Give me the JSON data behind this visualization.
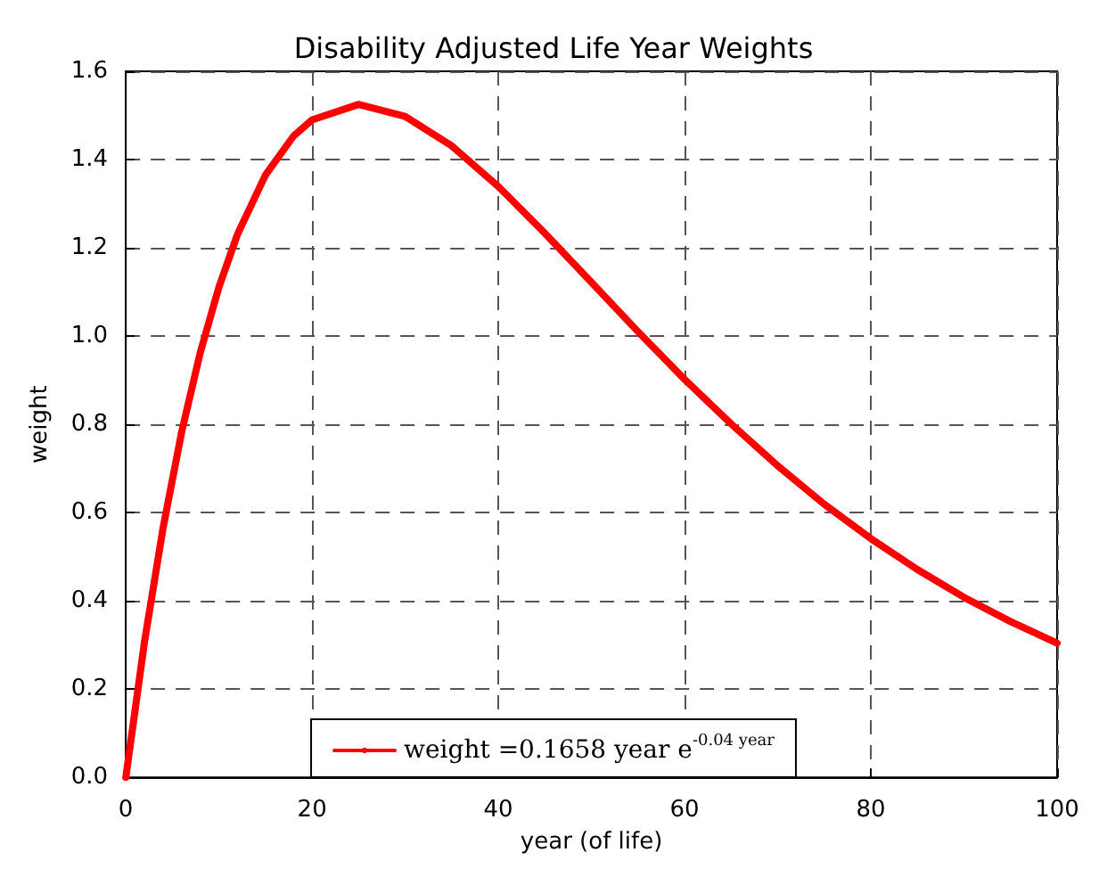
{
  "chart_data": {
    "type": "line",
    "title": "Disability Adjusted Life Year Weights",
    "xlabel": "year (of life)",
    "ylabel": "weight",
    "x": [
      0,
      2,
      4,
      6,
      8,
      10,
      12,
      15,
      18,
      20,
      25,
      30,
      35,
      40,
      45,
      50,
      55,
      60,
      65,
      70,
      75,
      80,
      85,
      90,
      95,
      100
    ],
    "series": [
      {
        "name": "weight =0.1658 year e$^{-0.04 year}$",
        "color": "#ff0000",
        "values": [
          0,
          0.306,
          0.565,
          0.783,
          0.963,
          1.111,
          1.231,
          1.365,
          1.453,
          1.49,
          1.525,
          1.498,
          1.431,
          1.339,
          1.233,
          1.122,
          1.01,
          0.902,
          0.801,
          0.706,
          0.619,
          0.541,
          0.471,
          0.408,
          0.353,
          0.304
        ]
      }
    ],
    "xlim": [
      0,
      100
    ],
    "xticks": [
      0,
      20,
      40,
      60,
      80,
      100
    ],
    "ylim": [
      0,
      1.6
    ],
    "yticks": [
      {
        "value": 0,
        "label": "0.0"
      },
      0.2,
      0.4,
      0.6,
      0.8,
      {
        "value": 1,
        "label": "1.0"
      },
      1.2,
      1.4,
      1.6
    ],
    "grid": true,
    "legend": "bottom",
    "line_style": "solid",
    "marker": "none"
  }
}
